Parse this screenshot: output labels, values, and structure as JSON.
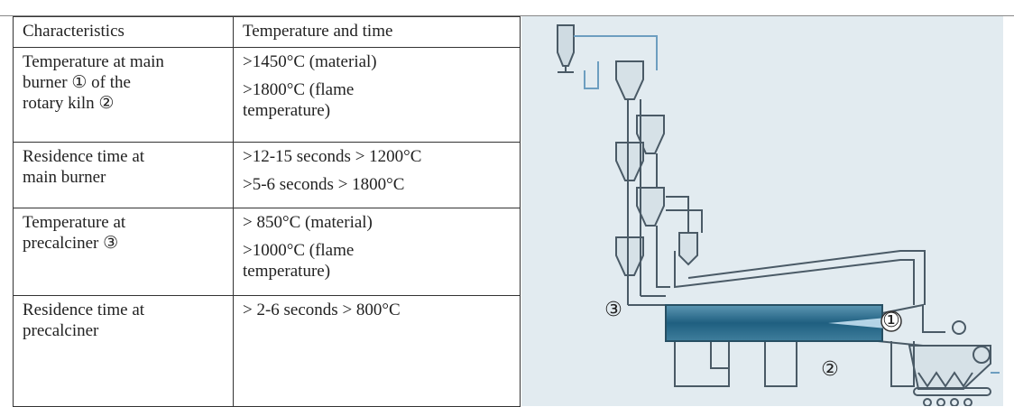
{
  "table": {
    "header": [
      "Characteristics",
      "Temperature and time"
    ],
    "rows": [
      [
        [
          [
            "Temperature at main",
            "burner ① of the",
            "rotary kiln ②"
          ]
        ],
        [
          [
            ">1450°C (material)"
          ],
          [
            ">1800°C (flame",
            "temperature)"
          ]
        ]
      ],
      [
        [
          [
            "Residence time at",
            "main burner"
          ]
        ],
        [
          [
            ">12-15 seconds > 1200°C"
          ],
          [
            ">5-6 seconds > 1800°C"
          ]
        ]
      ],
      [
        [
          [
            "Temperature at",
            "precalciner ③"
          ]
        ],
        [
          [
            "> 850°C (material)"
          ],
          [
            ">1000°C (flame",
            "temperature)"
          ]
        ]
      ],
      [
        [
          [
            "Residence time at",
            "precalciner"
          ]
        ],
        [
          [
            "> 2-6 seconds > 800°C"
          ]
        ]
      ]
    ]
  },
  "diagram": {
    "labels": [
      "①",
      "②",
      "③"
    ]
  }
}
